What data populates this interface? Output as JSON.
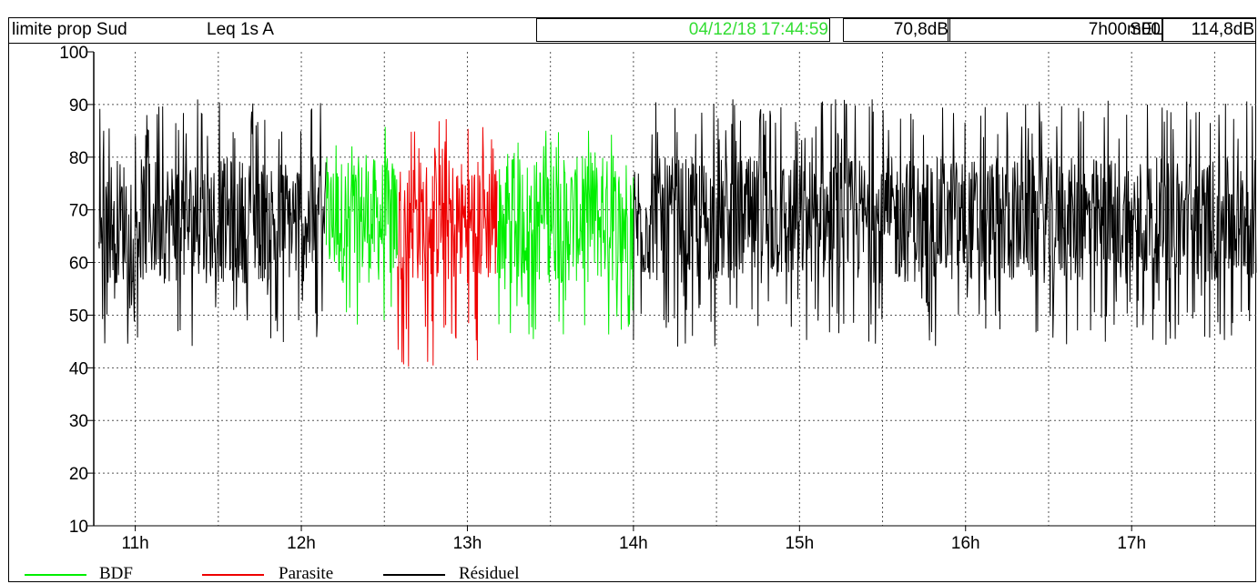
{
  "header": {
    "title": "limite prop Sud",
    "metric": "Leq 1s  A",
    "datetime": "04/12/18 17:44:59",
    "level": "70,8dB",
    "duration": "7h00m00",
    "sel_label": "SEL",
    "sel_value": "114,8dB",
    "datetime_color": "#33dd33"
  },
  "chart_data": {
    "type": "line",
    "title": "",
    "xlabel": "",
    "ylabel": "",
    "ylim": [
      10,
      100
    ],
    "yticks": [
      10,
      20,
      30,
      40,
      50,
      60,
      70,
      80,
      90,
      100
    ],
    "xlim_hours": [
      10.75,
      17.75
    ],
    "xticks": [
      {
        "hour": 11,
        "label": "11h"
      },
      {
        "hour": 12,
        "label": "12h"
      },
      {
        "hour": 13,
        "label": "13h"
      },
      {
        "hour": 14,
        "label": "14h"
      },
      {
        "hour": 15,
        "label": "15h"
      },
      {
        "hour": 16,
        "label": "16h"
      },
      {
        "hour": 17,
        "label": "17h"
      }
    ],
    "grid": true,
    "legend_position": "bottom",
    "series": [
      {
        "name": "BDF",
        "color": "#00ee00",
        "segments": [
          [
            12.15,
            12.58
          ],
          [
            13.18,
            14.0
          ]
        ],
        "typical_range_db": [
          45,
          86
        ]
      },
      {
        "name": "Parasite",
        "color": "#ee0000",
        "segments": [
          [
            12.58,
            13.18
          ]
        ],
        "typical_range_db": [
          40,
          88
        ]
      },
      {
        "name": "Résiduel",
        "color": "#000000",
        "segments": [
          [
            10.78,
            12.15
          ],
          [
            14.0,
            17.75
          ]
        ],
        "typical_range_db": [
          44,
          91
        ]
      }
    ]
  }
}
